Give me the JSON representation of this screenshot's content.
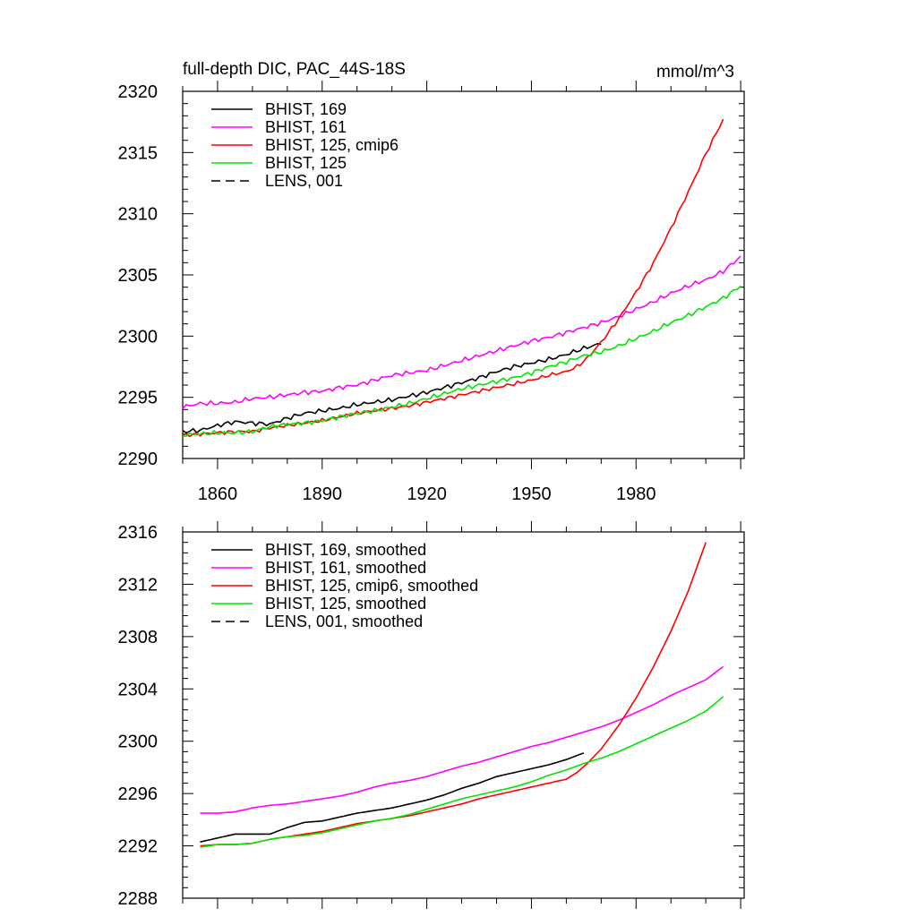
{
  "chart_data": [
    {
      "type": "line",
      "title": "full-depth DIC, PAC_44S-18S",
      "units": "mmol/m^3",
      "xlim": [
        1850,
        2011
      ],
      "ylim": [
        2290,
        2320
      ],
      "x_ticks": [
        1860,
        1890,
        1920,
        1950,
        1980
      ],
      "x_tick_labels": [
        "1860",
        "1890",
        "1920",
        "1950",
        "1980"
      ],
      "y_ticks": [
        2290,
        2295,
        2300,
        2305,
        2310,
        2315,
        2320
      ],
      "y_tick_labels": [
        "2290",
        "2295",
        "2300",
        "2305",
        "2310",
        "2315",
        "2320"
      ],
      "legend_position": "top-left",
      "series": [
        {
          "name": "BHIST, 169",
          "color": "#000000",
          "dash": "solid",
          "noise": 0.12,
          "x": [
            1850,
            1855,
            1860,
            1865,
            1870,
            1875,
            1880,
            1885,
            1890,
            1895,
            1900,
            1905,
            1910,
            1915,
            1920,
            1925,
            1930,
            1935,
            1940,
            1945,
            1950,
            1955,
            1960,
            1965,
            1970
          ],
          "y": [
            2292.2,
            2292.3,
            2292.7,
            2293.0,
            2292.9,
            2292.8,
            2293.3,
            2293.7,
            2293.9,
            2294.1,
            2294.4,
            2294.6,
            2294.8,
            2295.1,
            2295.4,
            2295.8,
            2296.2,
            2296.6,
            2297.1,
            2297.5,
            2297.8,
            2298.1,
            2298.5,
            2299.0,
            2299.4
          ]
        },
        {
          "name": "BHIST, 161",
          "color": "#ff00ff",
          "dash": "solid",
          "noise": 0.12,
          "x": [
            1850,
            1855,
            1860,
            1865,
            1870,
            1875,
            1880,
            1885,
            1890,
            1895,
            1900,
            1905,
            1910,
            1915,
            1920,
            1925,
            1930,
            1935,
            1940,
            1945,
            1950,
            1955,
            1960,
            1965,
            1970,
            1975,
            1980,
            1985,
            1990,
            1995,
            2000,
            2005,
            2010
          ],
          "y": [
            2294.2,
            2294.5,
            2294.5,
            2294.6,
            2294.9,
            2295.0,
            2295.2,
            2295.4,
            2295.5,
            2295.8,
            2296.0,
            2296.4,
            2296.8,
            2297.0,
            2297.2,
            2297.6,
            2298.0,
            2298.4,
            2298.8,
            2299.2,
            2299.6,
            2299.9,
            2300.3,
            2300.7,
            2301.1,
            2301.6,
            2302.2,
            2302.8,
            2303.5,
            2304.1,
            2304.6,
            2305.3,
            2306.5
          ]
        },
        {
          "name": "BHIST, 125, cmip6",
          "color": "#ff0000",
          "dash": "solid",
          "noise": 0.1,
          "x": [
            1850,
            1855,
            1860,
            1865,
            1870,
            1875,
            1880,
            1885,
            1890,
            1895,
            1900,
            1905,
            1910,
            1915,
            1920,
            1925,
            1930,
            1935,
            1940,
            1945,
            1950,
            1955,
            1960,
            1963,
            1966,
            1970,
            1975,
            1980,
            1985,
            1990,
            1995,
            2000,
            2005
          ],
          "y": [
            2291.9,
            2292.0,
            2292.1,
            2292.2,
            2292.2,
            2292.5,
            2292.7,
            2292.9,
            2293.1,
            2293.4,
            2293.7,
            2293.9,
            2294.1,
            2294.3,
            2294.6,
            2294.9,
            2295.2,
            2295.5,
            2295.8,
            2296.1,
            2296.4,
            2296.8,
            2297.1,
            2297.5,
            2298.2,
            2299.5,
            2301.4,
            2303.6,
            2306.0,
            2308.8,
            2311.8,
            2314.9,
            2317.7
          ]
        },
        {
          "name": "BHIST, 125",
          "color": "#00e600",
          "dash": "solid",
          "noise": 0.12,
          "x": [
            1850,
            1855,
            1860,
            1865,
            1870,
            1875,
            1880,
            1885,
            1890,
            1895,
            1900,
            1905,
            1910,
            1915,
            1920,
            1925,
            1930,
            1935,
            1940,
            1945,
            1950,
            1955,
            1960,
            1965,
            1970,
            1975,
            1980,
            1985,
            1990,
            1995,
            2000,
            2005,
            2010
          ],
          "y": [
            2291.9,
            2292.0,
            2292.1,
            2292.1,
            2292.2,
            2292.6,
            2292.8,
            2292.9,
            2293.1,
            2293.4,
            2293.7,
            2293.9,
            2294.2,
            2294.5,
            2294.9,
            2295.3,
            2295.7,
            2296.0,
            2296.3,
            2296.6,
            2297.0,
            2297.5,
            2297.9,
            2298.4,
            2298.7,
            2299.2,
            2299.8,
            2300.4,
            2301.1,
            2301.7,
            2302.4,
            2303.1,
            2304.1
          ]
        },
        {
          "name": "LENS, 001",
          "color": "#000000",
          "dash": "dashed",
          "noise": 0,
          "x": [],
          "y": []
        }
      ]
    },
    {
      "type": "line",
      "title": "",
      "units": "",
      "xlim": [
        1850,
        2011
      ],
      "ylim": [
        2288,
        2316
      ],
      "x_ticks": [
        1860,
        1890,
        1920,
        1950,
        1980
      ],
      "x_tick_labels": [],
      "y_ticks": [
        2288,
        2292,
        2296,
        2300,
        2304,
        2308,
        2312,
        2316
      ],
      "y_tick_labels": [
        "2288",
        "2292",
        "2296",
        "2300",
        "2304",
        "2308",
        "2312",
        "2316"
      ],
      "legend_position": "top-left",
      "series": [
        {
          "name": "BHIST, 169, smoothed",
          "color": "#000000",
          "dash": "solid",
          "noise": 0,
          "x": [
            1855,
            1860,
            1865,
            1870,
            1875,
            1880,
            1885,
            1890,
            1895,
            1900,
            1905,
            1910,
            1915,
            1920,
            1925,
            1930,
            1935,
            1940,
            1945,
            1950,
            1955,
            1960,
            1965
          ],
          "y": [
            2292.3,
            2292.6,
            2292.9,
            2292.9,
            2292.9,
            2293.4,
            2293.8,
            2293.9,
            2294.2,
            2294.5,
            2294.7,
            2294.9,
            2295.2,
            2295.5,
            2295.9,
            2296.4,
            2296.8,
            2297.3,
            2297.6,
            2297.9,
            2298.2,
            2298.6,
            2299.1
          ]
        },
        {
          "name": "BHIST, 161, smoothed",
          "color": "#ff00ff",
          "dash": "solid",
          "noise": 0,
          "x": [
            1855,
            1860,
            1865,
            1870,
            1875,
            1880,
            1885,
            1890,
            1895,
            1900,
            1905,
            1910,
            1915,
            1920,
            1925,
            1930,
            1935,
            1940,
            1945,
            1950,
            1955,
            1960,
            1965,
            1970,
            1975,
            1980,
            1985,
            1990,
            1995,
            2000,
            2005
          ],
          "y": [
            2294.5,
            2294.5,
            2294.6,
            2294.9,
            2295.1,
            2295.2,
            2295.4,
            2295.6,
            2295.8,
            2296.1,
            2296.5,
            2296.8,
            2297.0,
            2297.3,
            2297.7,
            2298.1,
            2298.4,
            2298.8,
            2299.2,
            2299.6,
            2299.9,
            2300.3,
            2300.7,
            2301.1,
            2301.6,
            2302.2,
            2302.8,
            2303.5,
            2304.1,
            2304.7,
            2305.7
          ]
        },
        {
          "name": "BHIST, 125, cmip6, smoothed",
          "color": "#ff0000",
          "dash": "solid",
          "noise": 0,
          "x": [
            1855,
            1860,
            1865,
            1870,
            1875,
            1880,
            1885,
            1890,
            1895,
            1900,
            1905,
            1910,
            1915,
            1920,
            1925,
            1930,
            1935,
            1940,
            1945,
            1950,
            1955,
            1960,
            1963,
            1966,
            1970,
            1975,
            1980,
            1985,
            1990,
            1995,
            2000
          ],
          "y": [
            2292.0,
            2292.1,
            2292.1,
            2292.2,
            2292.5,
            2292.7,
            2292.9,
            2293.1,
            2293.4,
            2293.7,
            2293.9,
            2294.1,
            2294.3,
            2294.6,
            2294.9,
            2295.2,
            2295.6,
            2295.9,
            2296.2,
            2296.5,
            2296.8,
            2297.1,
            2297.6,
            2298.3,
            2299.4,
            2301.2,
            2303.3,
            2305.7,
            2308.4,
            2311.5,
            2315.2
          ]
        },
        {
          "name": "BHIST, 125, smoothed",
          "color": "#00e600",
          "dash": "solid",
          "noise": 0,
          "x": [
            1855,
            1860,
            1865,
            1870,
            1875,
            1880,
            1885,
            1890,
            1895,
            1900,
            1905,
            1910,
            1915,
            1920,
            1925,
            1930,
            1935,
            1940,
            1945,
            1950,
            1955,
            1960,
            1965,
            1970,
            1975,
            1980,
            1985,
            1990,
            1995,
            2000,
            2005
          ],
          "y": [
            2291.9,
            2292.1,
            2292.1,
            2292.2,
            2292.5,
            2292.7,
            2292.8,
            2293.0,
            2293.3,
            2293.6,
            2293.9,
            2294.1,
            2294.4,
            2294.8,
            2295.2,
            2295.6,
            2295.9,
            2296.2,
            2296.5,
            2296.9,
            2297.4,
            2297.8,
            2298.3,
            2298.7,
            2299.2,
            2299.8,
            2300.4,
            2301.0,
            2301.6,
            2302.3,
            2303.4
          ]
        },
        {
          "name": "LENS, 001, smoothed",
          "color": "#000000",
          "dash": "dashed",
          "noise": 0,
          "x": [],
          "y": []
        }
      ]
    }
  ]
}
